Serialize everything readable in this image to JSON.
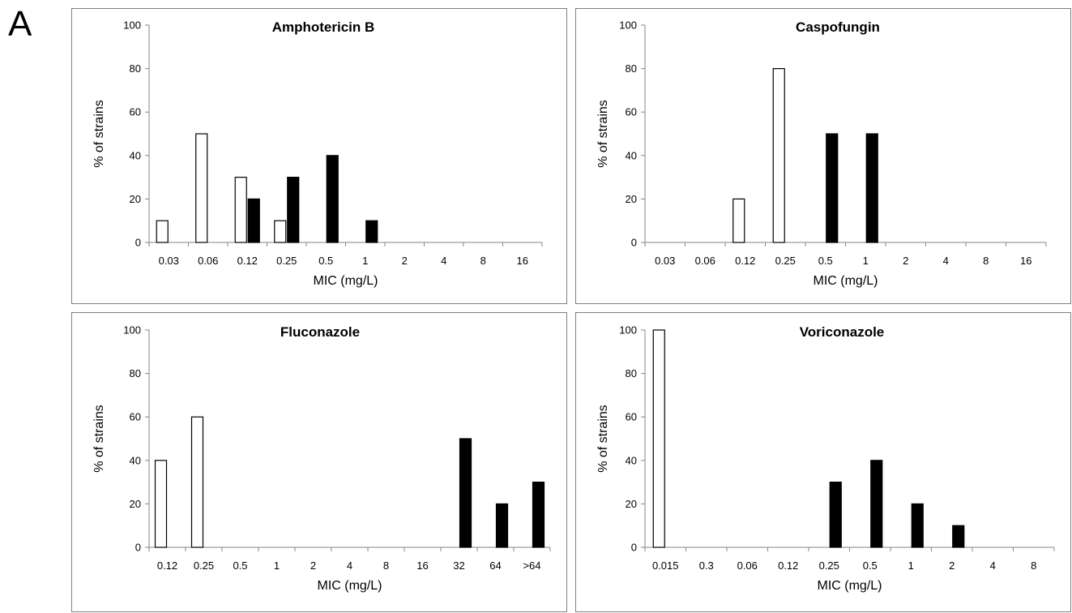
{
  "panel_label": "A",
  "chart_data": [
    {
      "type": "bar",
      "title": "Amphotericin B",
      "xlabel": "MIC (mg/L)",
      "ylabel": "% of strains",
      "ylim": [
        0,
        100
      ],
      "yticks": [
        "0",
        "20",
        "40",
        "60",
        "80",
        "100"
      ],
      "categories": [
        "0.03",
        "0.06",
        "0.12",
        "0.25",
        "0.5",
        "1",
        "2",
        "4",
        "8",
        "16"
      ],
      "series": [
        {
          "fill": "white",
          "values": [
            10,
            50,
            30,
            10,
            0,
            0,
            0,
            0,
            0,
            0
          ]
        },
        {
          "fill": "black",
          "values": [
            0,
            0,
            20,
            30,
            40,
            10,
            0,
            0,
            0,
            0
          ]
        }
      ]
    },
    {
      "type": "bar",
      "title": "Caspofungin",
      "xlabel": "MIC (mg/L)",
      "ylabel": "% of strains",
      "ylim": [
        0,
        100
      ],
      "yticks": [
        "0",
        "20",
        "40",
        "60",
        "80",
        "100"
      ],
      "categories": [
        "0.03",
        "0.06",
        "0.12",
        "0.25",
        "0.5",
        "1",
        "2",
        "4",
        "8",
        "16"
      ],
      "series": [
        {
          "fill": "white",
          "values": [
            0,
            0,
            20,
            80,
            0,
            0,
            0,
            0,
            0,
            0
          ]
        },
        {
          "fill": "black",
          "values": [
            0,
            0,
            0,
            0,
            50,
            50,
            0,
            0,
            0,
            0
          ]
        }
      ]
    },
    {
      "type": "bar",
      "title": "Fluconazole",
      "xlabel": "MIC (mg/L)",
      "ylabel": "% of strains",
      "ylim": [
        0,
        100
      ],
      "yticks": [
        "0",
        "20",
        "40",
        "60",
        "80",
        "100"
      ],
      "categories": [
        "0.12",
        "0.25",
        "0.5",
        "1",
        "2",
        "4",
        "8",
        "16",
        "32",
        "64",
        ">64"
      ],
      "series": [
        {
          "fill": "white",
          "values": [
            40,
            60,
            0,
            0,
            0,
            0,
            0,
            0,
            0,
            0,
            0
          ]
        },
        {
          "fill": "black",
          "values": [
            0,
            0,
            0,
            0,
            0,
            0,
            0,
            0,
            50,
            20,
            30
          ]
        }
      ]
    },
    {
      "type": "bar",
      "title": "Voriconazole",
      "xlabel": "MIC (mg/L)",
      "ylabel": "% of strains",
      "ylim": [
        0,
        100
      ],
      "yticks": [
        "0",
        "20",
        "40",
        "60",
        "80",
        "100"
      ],
      "categories": [
        "0.015",
        "0.3",
        "0.06",
        "0.12",
        "0.25",
        "0.5",
        "1",
        "2",
        "4",
        "8"
      ],
      "series": [
        {
          "fill": "white",
          "values": [
            100,
            0,
            0,
            0,
            0,
            0,
            0,
            0,
            0,
            0
          ]
        },
        {
          "fill": "black",
          "values": [
            0,
            0,
            0,
            0,
            30,
            40,
            20,
            10,
            0,
            0
          ]
        }
      ]
    }
  ]
}
